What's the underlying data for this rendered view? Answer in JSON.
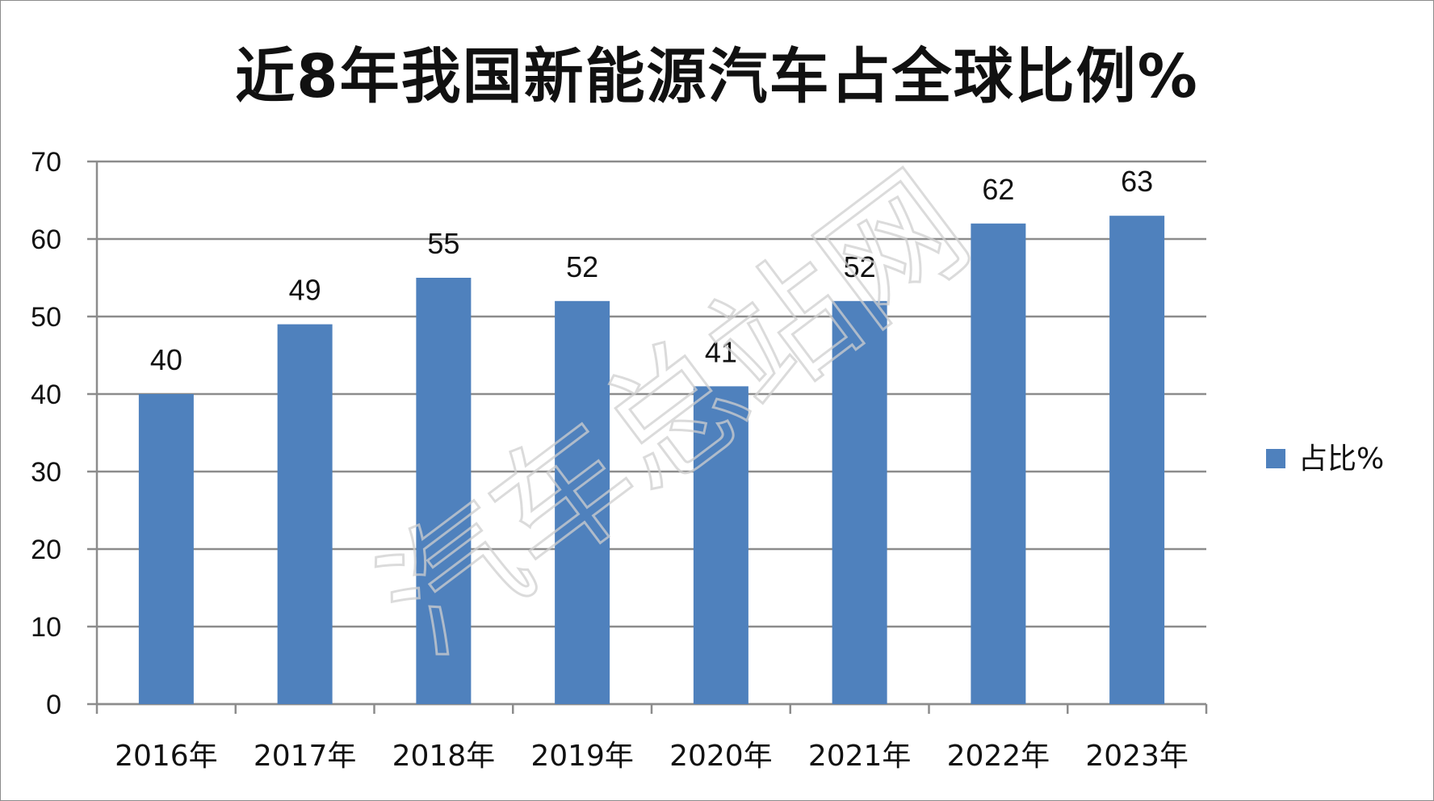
{
  "chart_data": {
    "type": "bar",
    "title": "近8年我国新能源汽车占全球比例%",
    "categories": [
      "2016年",
      "2017年",
      "2018年",
      "2019年",
      "2020年",
      "2021年",
      "2022年",
      "2023年"
    ],
    "series": [
      {
        "name": "占比%",
        "values": [
          40,
          49,
          55,
          52,
          41,
          52,
          62,
          63
        ],
        "color": "#4f81bd"
      }
    ],
    "yticks": [
      0,
      10,
      20,
      30,
      40,
      50,
      60,
      70
    ],
    "ylim": [
      0,
      70
    ],
    "xlabel": "",
    "ylabel": "",
    "grid": true,
    "legend_position": "right",
    "data_labels": true
  },
  "watermark": "汽车总站网",
  "colors": {
    "bar": "#4f81bd",
    "grid": "#8c8c8c",
    "axis": "#8c8c8c"
  }
}
